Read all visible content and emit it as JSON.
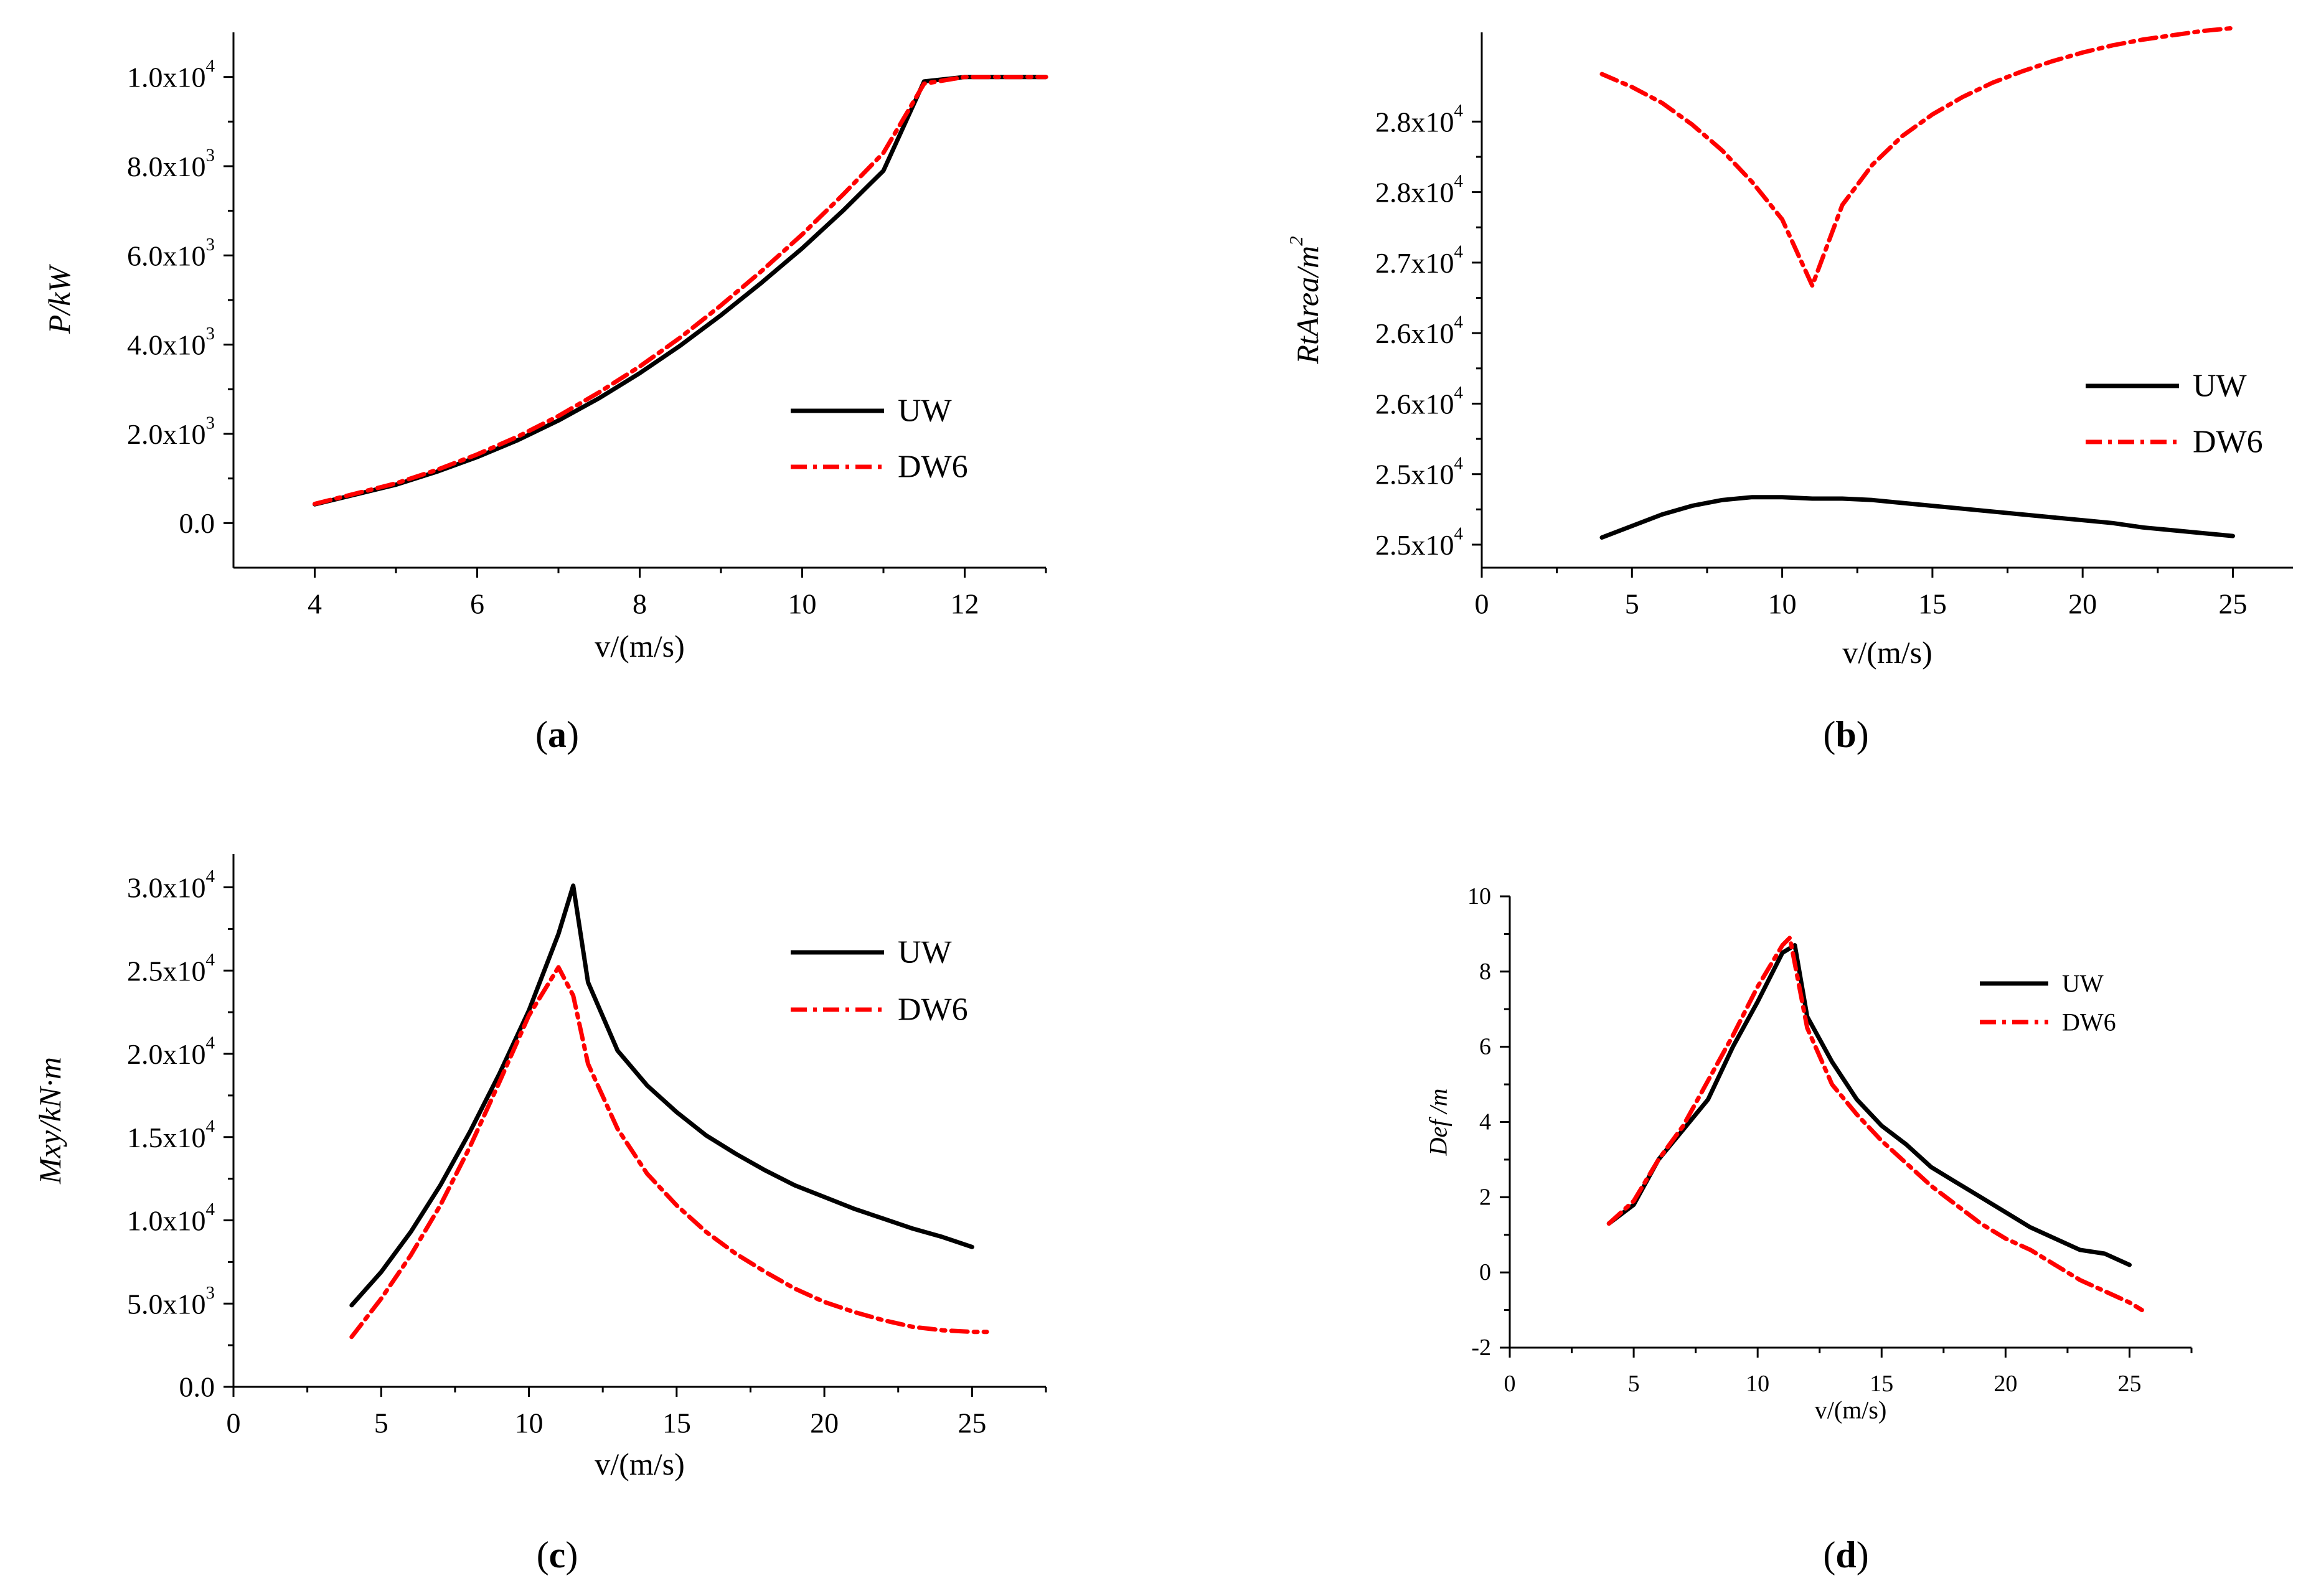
{
  "chart_data": [
    {
      "panel": "a",
      "type": "line",
      "panel_label": "a",
      "xlabel": "v/(m/s)",
      "ylabel": "P/kW",
      "xlim": [
        3,
        13
      ],
      "ylim": [
        -1000,
        11000
      ],
      "xticks": [
        "4",
        "6",
        "8",
        "10",
        "12"
      ],
      "yticks": [
        "0.0",
        "2.0x10^3",
        "4.0x10^3",
        "6.0x10^3",
        "8.0x10^3",
        "1.0x10^4"
      ],
      "legend": [
        "UW",
        "DW6"
      ],
      "series": [
        {
          "name": "UW",
          "x": [
            4,
            4.5,
            5,
            5.5,
            6,
            6.5,
            7,
            7.5,
            8,
            8.5,
            9,
            9.5,
            10,
            10.5,
            11,
            11.5,
            12,
            12.5,
            13
          ],
          "values": [
            420,
            640,
            860,
            1150,
            1480,
            1860,
            2300,
            2800,
            3360,
            3980,
            4660,
            5390,
            6160,
            7000,
            7900,
            9900,
            10000,
            10000,
            10000
          ]
        },
        {
          "name": "DW6",
          "x": [
            4,
            4.5,
            5,
            5.5,
            6,
            6.5,
            7,
            7.5,
            8,
            8.5,
            9,
            9.5,
            10,
            10.5,
            11,
            11.5,
            12,
            12.5,
            13
          ],
          "values": [
            430,
            660,
            890,
            1190,
            1540,
            1940,
            2400,
            2930,
            3510,
            4160,
            4880,
            5650,
            6470,
            7360,
            8300,
            9850,
            10000,
            10000,
            10000
          ]
        }
      ]
    },
    {
      "panel": "b",
      "type": "line",
      "panel_label": "b",
      "xlabel": "v/(m/s)",
      "ylabel": "RtArea/m^2",
      "xlim": [
        0,
        27
      ],
      "ylim": [
        24840,
        28560
      ],
      "xticks": [
        "0",
        "5",
        "10",
        "15",
        "20",
        "25"
      ],
      "yticks": [
        "2.5x10^4",
        "2.5x10^4",
        "2.6x10^4",
        "2.6x10^4",
        "2.7x10^4",
        "2.8x10^4",
        "2.8x10^4"
      ],
      "legend": [
        "UW",
        "DW6"
      ],
      "series": [
        {
          "name": "UW",
          "x": [
            4,
            5,
            6,
            7,
            8,
            9,
            10,
            11,
            12,
            13,
            14,
            15,
            16,
            17,
            18,
            19,
            20,
            21,
            22,
            23,
            24,
            25
          ],
          "values": [
            25050,
            25130,
            25210,
            25270,
            25310,
            25330,
            25330,
            25320,
            25320,
            25310,
            25290,
            25270,
            25250,
            25230,
            25210,
            25190,
            25170,
            25150,
            25120,
            25100,
            25080,
            25060
          ]
        },
        {
          "name": "DW6",
          "x": [
            4,
            5,
            6,
            7,
            8,
            9,
            10,
            11,
            12,
            13,
            14,
            15,
            16,
            17,
            18,
            19,
            20,
            21,
            22,
            23,
            24,
            25
          ],
          "values": [
            28270,
            28180,
            28070,
            27920,
            27740,
            27520,
            27260,
            26800,
            27360,
            27640,
            27840,
            27990,
            28110,
            28210,
            28290,
            28360,
            28420,
            28470,
            28510,
            28540,
            28570,
            28590
          ]
        }
      ]
    },
    {
      "panel": "c",
      "type": "line",
      "panel_label": "c",
      "xlabel": "v/(m/s)",
      "ylabel": "Mxy/kN·m",
      "xlim": [
        0,
        27.5
      ],
      "ylim": [
        0,
        32000
      ],
      "xticks": [
        "0",
        "5",
        "10",
        "15",
        "20",
        "25"
      ],
      "yticks": [
        "0.0",
        "5.0x10^3",
        "1.0x10^4",
        "1.5x10^4",
        "2.0x10^4",
        "2.5x10^4",
        "3.0x10^4"
      ],
      "legend": [
        "UW",
        "DW6"
      ],
      "series": [
        {
          "name": "UW",
          "x": [
            4,
            5,
            6,
            7,
            8,
            9,
            10,
            11,
            11.5,
            12,
            13,
            14,
            15,
            16,
            17,
            18,
            19,
            20,
            21,
            22,
            23,
            24,
            25
          ],
          "values": [
            4900,
            6900,
            9300,
            12100,
            15300,
            18800,
            22600,
            27200,
            30100,
            24300,
            20200,
            18100,
            16500,
            15100,
            14000,
            13000,
            12100,
            11400,
            10700,
            10100,
            9500,
            9000,
            8400
          ]
        },
        {
          "name": "DW6",
          "x": [
            4,
            5,
            6,
            7,
            8,
            9,
            10,
            11,
            11.5,
            12,
            13,
            14,
            15,
            16,
            17,
            18,
            19,
            20,
            21,
            22,
            23,
            24,
            25,
            25.5
          ],
          "values": [
            3000,
            5300,
            7900,
            10900,
            14400,
            18300,
            22300,
            25200,
            23500,
            19400,
            15500,
            12800,
            10900,
            9300,
            8000,
            6900,
            5900,
            5100,
            4500,
            4000,
            3600,
            3400,
            3300,
            3300
          ]
        }
      ]
    },
    {
      "panel": "d",
      "type": "line",
      "panel_label": "d",
      "xlabel": "v/(m/s)",
      "ylabel": "Def /m",
      "xlim": [
        0,
        27.5
      ],
      "ylim": [
        -2,
        10
      ],
      "xticks": [
        "0",
        "5",
        "10",
        "15",
        "20",
        "25"
      ],
      "yticks": [
        "-2",
        "0",
        "2",
        "4",
        "6",
        "8",
        "10"
      ],
      "legend": [
        "UW",
        "DW6"
      ],
      "series": [
        {
          "name": "UW",
          "x": [
            4,
            5,
            6,
            7,
            8,
            9,
            10,
            11,
            11.5,
            12,
            13,
            14,
            15,
            16,
            17,
            18,
            19,
            20,
            21,
            22,
            23,
            24,
            25
          ],
          "values": [
            1.3,
            1.8,
            3.0,
            3.8,
            4.6,
            6.0,
            7.2,
            8.5,
            8.7,
            6.8,
            5.6,
            4.6,
            3.9,
            3.4,
            2.8,
            2.4,
            2.0,
            1.6,
            1.2,
            0.9,
            0.6,
            0.5,
            0.2
          ]
        },
        {
          "name": "DW6",
          "x": [
            4,
            5,
            6,
            7,
            8,
            9,
            10,
            11,
            11.3,
            12,
            13,
            14,
            15,
            16,
            17,
            18,
            19,
            20,
            21,
            22,
            23,
            24,
            25,
            25.5
          ],
          "values": [
            1.3,
            1.9,
            3.0,
            3.9,
            5.1,
            6.3,
            7.6,
            8.7,
            8.9,
            6.5,
            5.0,
            4.2,
            3.5,
            2.9,
            2.3,
            1.8,
            1.3,
            0.9,
            0.6,
            0.2,
            -0.2,
            -0.5,
            -0.8,
            -1.0
          ]
        }
      ]
    }
  ]
}
